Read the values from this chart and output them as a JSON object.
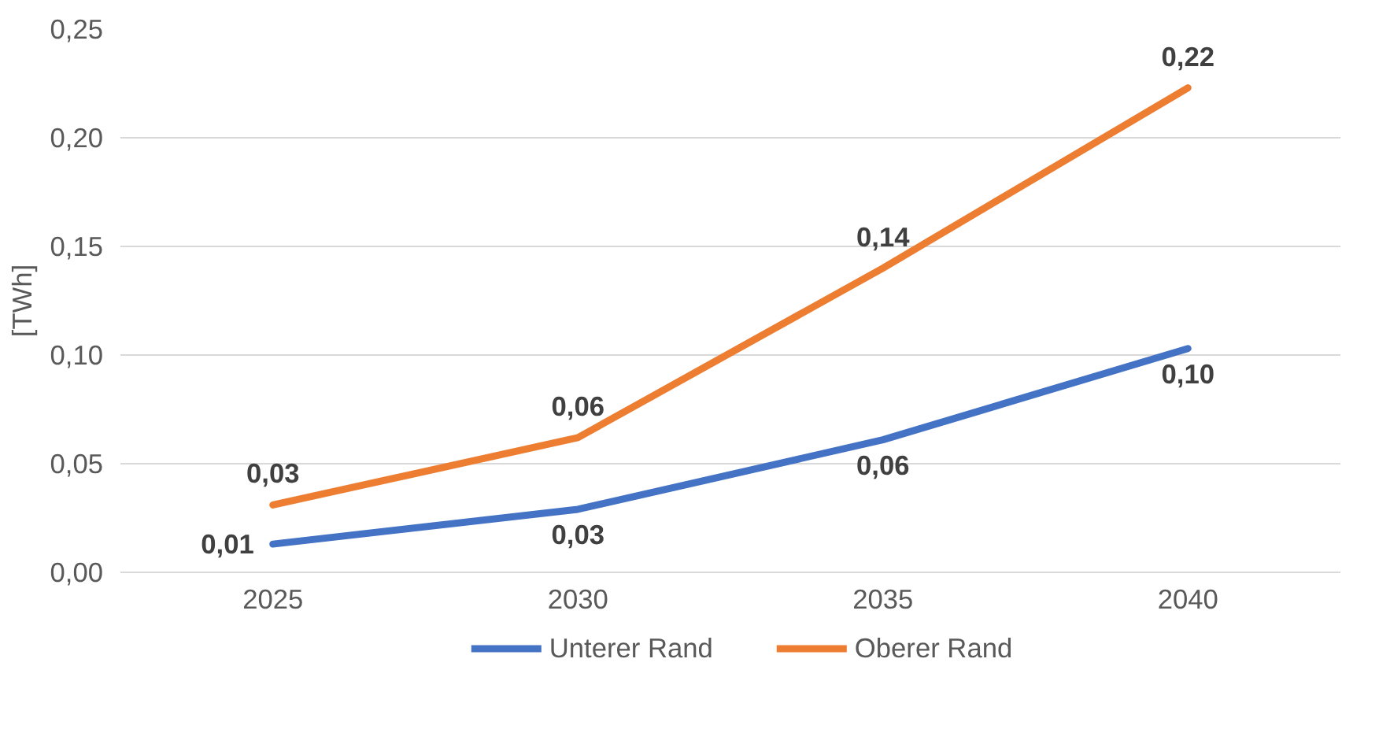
{
  "chart_data": {
    "type": "line",
    "ylabel": "[TWh]",
    "categories": [
      "2025",
      "2030",
      "2035",
      "2040"
    ],
    "series": [
      {
        "name": "Unterer Rand",
        "color": "#4472c4",
        "values": [
          0.013,
          0.029,
          0.061,
          0.103
        ],
        "value_labels": [
          "0,01",
          "0,03",
          "0,06",
          "0,10"
        ]
      },
      {
        "name": "Oberer Rand",
        "color": "#ed7d31",
        "values": [
          0.031,
          0.062,
          0.14,
          0.223
        ],
        "value_labels": [
          "0,03",
          "0,06",
          "0,14",
          "0,22"
        ]
      }
    ],
    "ylim": [
      0,
      0.25
    ],
    "yticks": [
      {
        "value": 0,
        "label": "0,00"
      },
      {
        "value": 0.05,
        "label": "0,05"
      },
      {
        "value": 0.1,
        "label": "0,10"
      },
      {
        "value": 0.15,
        "label": "0,15"
      },
      {
        "value": 0.2,
        "label": "0,20"
      },
      {
        "value": 0.25,
        "label": "0,25"
      }
    ],
    "grid": "y",
    "legend": "bottom",
    "marker": "none",
    "line_style": "solid"
  }
}
